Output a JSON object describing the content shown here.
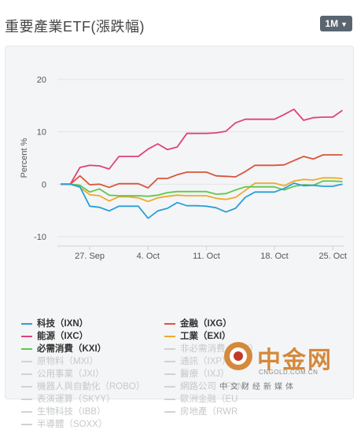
{
  "header": {
    "title": "重要產業ETF(漲跌幅)",
    "range_label": "1M"
  },
  "colors": {
    "pink": "#e0417a",
    "red": "#d9543c",
    "orange": "#f0a830",
    "green": "#5dc94a",
    "blue": "#2a9fd8",
    "off": "#cfd1d3"
  },
  "legend": [
    {
      "label": "科技（IXN）",
      "color": "#2a9fd8",
      "active": true
    },
    {
      "label": "金融（IXG）",
      "color": "#d9543c",
      "active": true
    },
    {
      "label": "能源（IXC）",
      "color": "#e0417a",
      "active": true
    },
    {
      "label": "工業（EXI）",
      "color": "#f0a830",
      "active": true
    },
    {
      "label": "必需消費（KXI）",
      "color": "#5dc94a",
      "active": true
    },
    {
      "label": "非必需消費（RXI）",
      "color": "#cfd1d3",
      "active": false
    },
    {
      "label": "原物料（MXI）",
      "color": "#cfd1d3",
      "active": false
    },
    {
      "label": "通訊（IXP）",
      "color": "#cfd1d3",
      "active": false
    },
    {
      "label": "公用事業（JXI）",
      "color": "#cfd1d3",
      "active": false
    },
    {
      "label": "醫療（IXJ）",
      "color": "#cfd1d3",
      "active": false
    },
    {
      "label": "機器人與自動化（ROBO）",
      "color": "#cfd1d3",
      "active": false
    },
    {
      "label": "網路公司（FDN）",
      "color": "#cfd1d3",
      "active": false
    },
    {
      "label": "表演運算（SKYY）",
      "color": "#cfd1d3",
      "active": false
    },
    {
      "label": "歐洲金融（EU",
      "color": "#cfd1d3",
      "active": false
    },
    {
      "label": "生物科技（IBB）",
      "color": "#cfd1d3",
      "active": false
    },
    {
      "label": "房地產（RWR",
      "color": "#cfd1d3",
      "active": false
    },
    {
      "label": "半導體（SOXX）",
      "color": "#cfd1d3",
      "active": false
    }
  ],
  "watermark": {
    "brand": "中金网",
    "url": "CNGOLD.COM.CN",
    "tagline": "中文财经新媒体"
  },
  "chart_data": {
    "type": "line",
    "ylabel": "Percent %",
    "ylim": [
      -10,
      20
    ],
    "yticks": [
      -10,
      0,
      10,
      20
    ],
    "xtick_labels": [
      "27. Sep",
      "4. Oct",
      "11. Oct",
      "18. Oct",
      "25. Oct"
    ],
    "xtick_index": [
      3,
      9,
      15,
      22,
      28
    ],
    "x_count": 30,
    "grid": true,
    "series": [
      {
        "name": "能源（IXC）",
        "color": "#e0417a",
        "values": [
          0,
          0,
          3.2,
          3.6,
          3.5,
          2.9,
          5.3,
          5.3,
          5.3,
          6.7,
          7.7,
          6.6,
          7.1,
          9.7,
          9.7,
          9.7,
          9.8,
          10.1,
          11.7,
          12.4,
          12.4,
          12.4,
          12.4,
          13.3,
          14.3,
          12.2,
          12.7,
          12.8,
          12.8,
          14.1
        ]
      },
      {
        "name": "金融（IXG）",
        "color": "#d9543c",
        "values": [
          0,
          0,
          1.6,
          -0.1,
          0,
          -0.6,
          0.1,
          0.1,
          0.1,
          -0.7,
          1.1,
          1.1,
          1.8,
          2.3,
          2.3,
          2.3,
          1.6,
          1.5,
          1.4,
          2.4,
          3.6,
          3.6,
          3.6,
          3.7,
          4.5,
          5.3,
          4.8,
          5.6,
          5.6,
          5.6
        ]
      },
      {
        "name": "工業（EXI）",
        "color": "#f0a830",
        "values": [
          0,
          0,
          -0.6,
          -2.0,
          -2.2,
          -3.2,
          -2.4,
          -2.4,
          -2.6,
          -3.3,
          -2.6,
          -2.3,
          -2.1,
          -2.2,
          -2.2,
          -2.2,
          -2.7,
          -2.9,
          -2.5,
          -1.2,
          0.2,
          0.2,
          0.2,
          -0.3,
          0.6,
          0.9,
          0.8,
          1.2,
          1.2,
          1.1
        ]
      },
      {
        "name": "必需消費（KXI）",
        "color": "#5dc94a",
        "values": [
          0,
          0,
          -0.2,
          -1.5,
          -0.9,
          -2.1,
          -2.2,
          -2.2,
          -2.2,
          -2.3,
          -2.1,
          -1.6,
          -1.4,
          -1.4,
          -1.4,
          -1.4,
          -1.9,
          -1.8,
          -1.1,
          -0.5,
          -0.5,
          -0.5,
          -0.5,
          -1.1,
          -0.4,
          -0.1,
          -0.2,
          0.6,
          0.6,
          0.5
        ]
      },
      {
        "name": "科技（IXN）",
        "color": "#2a9fd8",
        "values": [
          0,
          0,
          -0.5,
          -4.2,
          -4.4,
          -5.1,
          -4.2,
          -4.2,
          -4.2,
          -6.5,
          -5.1,
          -4.6,
          -3.5,
          -4.1,
          -4.1,
          -4.2,
          -4.5,
          -5.3,
          -4.6,
          -2.5,
          -1.5,
          -1.5,
          -1.5,
          -0.8,
          0.2,
          -0.3,
          -0.2,
          -0.4,
          -0.4,
          0.0
        ]
      }
    ]
  }
}
